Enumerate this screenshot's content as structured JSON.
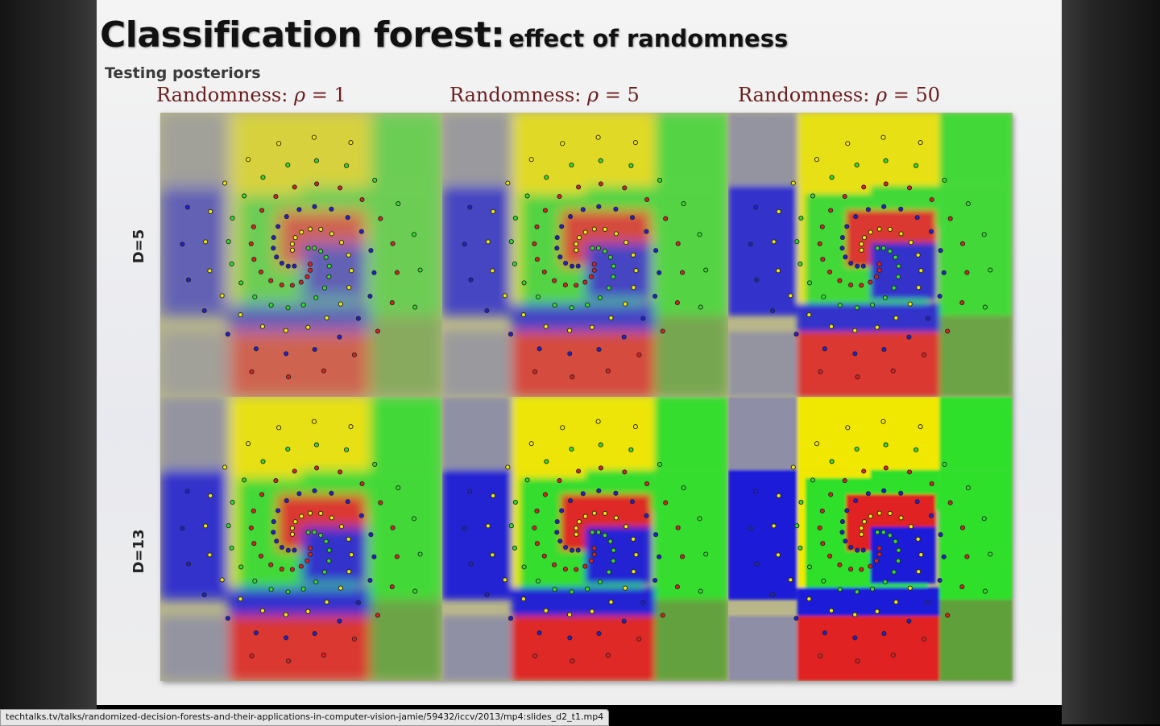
{
  "slide": {
    "title_main": "Classification forest:",
    "title_sub": "effect of randomness",
    "section_label": "Testing posteriors"
  },
  "columns": [
    {
      "label": "Randomness:",
      "symbol": "ρ",
      "eq": "= 1"
    },
    {
      "label": "Randomness:",
      "symbol": "ρ",
      "eq": "= 5"
    },
    {
      "label": "Randomness:",
      "symbol": "ρ",
      "eq": "= 50"
    }
  ],
  "rows": [
    {
      "label": "D=5"
    },
    {
      "label": "D=13"
    }
  ],
  "colors": {
    "yellow": "#f0e800",
    "green": "#2fe02a",
    "blue": "#1f1fd8",
    "red": "#e02020",
    "neutral": "#8e8ea6"
  },
  "status_bar": {
    "url": "techtalks.tv/talks/randomized-decision-forests-and-their-applications-in-computer-vision-jamie/59432/iccv/2013/mp4:slides_d2_t1.mp4"
  }
}
